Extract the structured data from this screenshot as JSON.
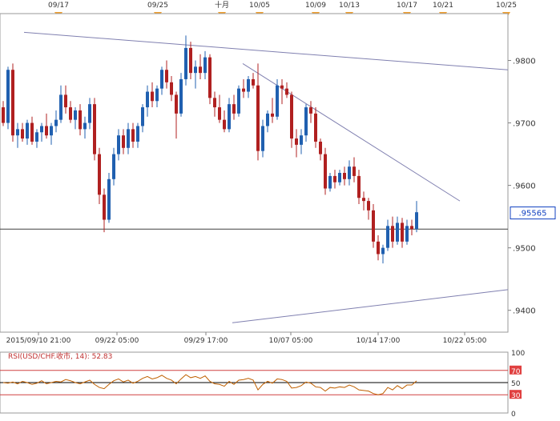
{
  "chart_data": [
    {
      "type": "candlestick",
      "instrument": "USD/CHF",
      "top_date_markers": [
        "09/17",
        "09/25",
        "十月",
        "10/05",
        "10/09",
        "10/13",
        "10/17",
        "10/21",
        "10/25"
      ],
      "x_tick_labels": [
        "2015/09/10 21:00",
        "09/22 05:00",
        "09/29 17:00",
        "10/07 05:00",
        "10/14 17:00",
        "10/22 05:00"
      ],
      "y_ticks": [
        0.94,
        0.95,
        0.96,
        0.97,
        0.98
      ],
      "y_tick_labels": [
        ".9400",
        ".9500",
        ".9600",
        ".9700",
        ".9800"
      ],
      "ylim": [
        0.9365,
        0.9875
      ],
      "current_price": 0.95565,
      "current_price_label": ".95565",
      "horizontal_level": 0.953,
      "candles": [
        [
          0.9725,
          0.9735,
          0.9695,
          0.97
        ],
        [
          0.97,
          0.979,
          0.969,
          0.9785
        ],
        [
          0.9785,
          0.9795,
          0.967,
          0.968
        ],
        [
          0.968,
          0.97,
          0.966,
          0.969
        ],
        [
          0.969,
          0.97,
          0.967,
          0.9675
        ],
        [
          0.9675,
          0.9705,
          0.9665,
          0.97
        ],
        [
          0.97,
          0.971,
          0.9665,
          0.967
        ],
        [
          0.967,
          0.969,
          0.966,
          0.9685
        ],
        [
          0.9685,
          0.97,
          0.967,
          0.9695
        ],
        [
          0.9695,
          0.9715,
          0.9675,
          0.968
        ],
        [
          0.968,
          0.97,
          0.9665,
          0.9695
        ],
        [
          0.9695,
          0.972,
          0.9685,
          0.9705
        ],
        [
          0.9705,
          0.976,
          0.97,
          0.9745
        ],
        [
          0.9745,
          0.976,
          0.9715,
          0.9725
        ],
        [
          0.9725,
          0.9735,
          0.97,
          0.9705
        ],
        [
          0.9705,
          0.9725,
          0.969,
          0.972
        ],
        [
          0.972,
          0.973,
          0.968,
          0.969
        ],
        [
          0.969,
          0.971,
          0.9675,
          0.97
        ],
        [
          0.97,
          0.974,
          0.969,
          0.973
        ],
        [
          0.973,
          0.974,
          0.964,
          0.965
        ],
        [
          0.965,
          0.966,
          0.957,
          0.9585
        ],
        [
          0.9585,
          0.9595,
          0.9525,
          0.9545
        ],
        [
          0.9545,
          0.962,
          0.954,
          0.961
        ],
        [
          0.961,
          0.966,
          0.96,
          0.965
        ],
        [
          0.965,
          0.969,
          0.964,
          0.968
        ],
        [
          0.968,
          0.969,
          0.965,
          0.966
        ],
        [
          0.966,
          0.97,
          0.965,
          0.969
        ],
        [
          0.969,
          0.97,
          0.966,
          0.967
        ],
        [
          0.967,
          0.97,
          0.966,
          0.9695
        ],
        [
          0.9695,
          0.973,
          0.9685,
          0.9725
        ],
        [
          0.9725,
          0.976,
          0.971,
          0.975
        ],
        [
          0.975,
          0.9765,
          0.9725,
          0.9735
        ],
        [
          0.9735,
          0.976,
          0.9725,
          0.9755
        ],
        [
          0.9755,
          0.979,
          0.9745,
          0.9785
        ],
        [
          0.9785,
          0.98,
          0.9755,
          0.9765
        ],
        [
          0.9765,
          0.9775,
          0.9735,
          0.9745
        ],
        [
          0.9745,
          0.975,
          0.9675,
          0.9715
        ],
        [
          0.9715,
          0.978,
          0.971,
          0.977
        ],
        [
          0.977,
          0.984,
          0.976,
          0.982
        ],
        [
          0.982,
          0.983,
          0.977,
          0.978
        ],
        [
          0.978,
          0.98,
          0.9755,
          0.979
        ],
        [
          0.979,
          0.981,
          0.977,
          0.978
        ],
        [
          0.978,
          0.9815,
          0.977,
          0.9805
        ],
        [
          0.9805,
          0.981,
          0.973,
          0.974
        ],
        [
          0.974,
          0.975,
          0.971,
          0.9725
        ],
        [
          0.9725,
          0.9745,
          0.97,
          0.9705
        ],
        [
          0.9705,
          0.972,
          0.9685,
          0.969
        ],
        [
          0.969,
          0.974,
          0.9685,
          0.973
        ],
        [
          0.973,
          0.9745,
          0.9705,
          0.9715
        ],
        [
          0.9715,
          0.976,
          0.971,
          0.9755
        ],
        [
          0.9755,
          0.977,
          0.974,
          0.975
        ],
        [
          0.975,
          0.9775,
          0.974,
          0.977
        ],
        [
          0.977,
          0.978,
          0.9755,
          0.976
        ],
        [
          0.976,
          0.9795,
          0.964,
          0.9655
        ],
        [
          0.9655,
          0.9705,
          0.9645,
          0.9695
        ],
        [
          0.9695,
          0.972,
          0.9685,
          0.9715
        ],
        [
          0.9715,
          0.974,
          0.97,
          0.971
        ],
        [
          0.971,
          0.977,
          0.9705,
          0.976
        ],
        [
          0.976,
          0.977,
          0.973,
          0.9755
        ],
        [
          0.9755,
          0.9765,
          0.974,
          0.9745
        ],
        [
          0.9745,
          0.975,
          0.966,
          0.9675
        ],
        [
          0.9675,
          0.969,
          0.9645,
          0.9665
        ],
        [
          0.9665,
          0.969,
          0.965,
          0.968
        ],
        [
          0.968,
          0.973,
          0.967,
          0.9725
        ],
        [
          0.9725,
          0.9735,
          0.97,
          0.9715
        ],
        [
          0.9715,
          0.9725,
          0.966,
          0.967
        ],
        [
          0.967,
          0.9675,
          0.964,
          0.965
        ],
        [
          0.965,
          0.966,
          0.9585,
          0.9595
        ],
        [
          0.9595,
          0.962,
          0.959,
          0.9615
        ],
        [
          0.9615,
          0.9625,
          0.9595,
          0.9605
        ],
        [
          0.9605,
          0.9625,
          0.96,
          0.962
        ],
        [
          0.962,
          0.963,
          0.96,
          0.961
        ],
        [
          0.961,
          0.964,
          0.96,
          0.963
        ],
        [
          0.963,
          0.9645,
          0.9605,
          0.9615
        ],
        [
          0.9615,
          0.9625,
          0.957,
          0.958
        ],
        [
          0.958,
          0.959,
          0.956,
          0.9575
        ],
        [
          0.9575,
          0.958,
          0.9545,
          0.956
        ],
        [
          0.956,
          0.957,
          0.95,
          0.951
        ],
        [
          0.951,
          0.952,
          0.948,
          0.949
        ],
        [
          0.949,
          0.9505,
          0.9475,
          0.95
        ],
        [
          0.95,
          0.9545,
          0.9495,
          0.9535
        ],
        [
          0.9535,
          0.955,
          0.95,
          0.951
        ],
        [
          0.951,
          0.955,
          0.9505,
          0.954
        ],
        [
          0.954,
          0.9548,
          0.95,
          0.951
        ],
        [
          0.951,
          0.9545,
          0.9505,
          0.9535
        ],
        [
          0.9535,
          0.9545,
          0.952,
          0.953
        ],
        [
          0.953,
          0.9575,
          0.9525,
          0.9557
        ]
      ],
      "trendlines": [
        {
          "x": [
            "2015/09/10 21:00",
            "10/25"
          ],
          "y": [
            0.9845,
            0.9785
          ]
        },
        {
          "x": [
            "10/01",
            "10/21"
          ],
          "y": [
            0.9795,
            0.9575
          ]
        },
        {
          "x": [
            "10/01",
            "10/25"
          ],
          "y": [
            0.938,
            0.9433
          ]
        }
      ]
    },
    {
      "type": "line",
      "indicator_label": "RSI(USD/CHF.收市, 14): 52.83",
      "ylim": [
        0,
        100
      ],
      "y_tick_labels": [
        "100",
        "70",
        "50",
        "30",
        "0"
      ],
      "levels": [
        70,
        50,
        30
      ],
      "values": [
        50,
        49,
        51,
        48,
        52,
        50,
        47,
        49,
        53,
        48,
        50,
        52,
        51,
        55,
        53,
        50,
        48,
        51,
        54,
        47,
        42,
        40,
        47,
        53,
        56,
        51,
        54,
        49,
        52,
        57,
        60,
        56,
        58,
        62,
        57,
        54,
        48,
        56,
        63,
        58,
        60,
        57,
        61,
        52,
        48,
        47,
        44,
        52,
        47,
        54,
        55,
        57,
        54,
        38,
        47,
        52,
        49,
        56,
        55,
        52,
        41,
        42,
        45,
        51,
        49,
        43,
        42,
        36,
        42,
        41,
        43,
        42,
        46,
        43,
        38,
        37,
        36,
        32,
        30,
        32,
        42,
        38,
        45,
        40,
        46,
        46,
        52.83
      ]
    }
  ],
  "colors": {
    "up_candle": "#2060b0",
    "down_candle": "#b02020",
    "trendline": "#8080b0",
    "horizontal_level": "#404040",
    "rsi_line": "#c06000",
    "rsi_bands": "#d04040",
    "marker": "#f0a030",
    "price_tag": "#1040c0"
  }
}
